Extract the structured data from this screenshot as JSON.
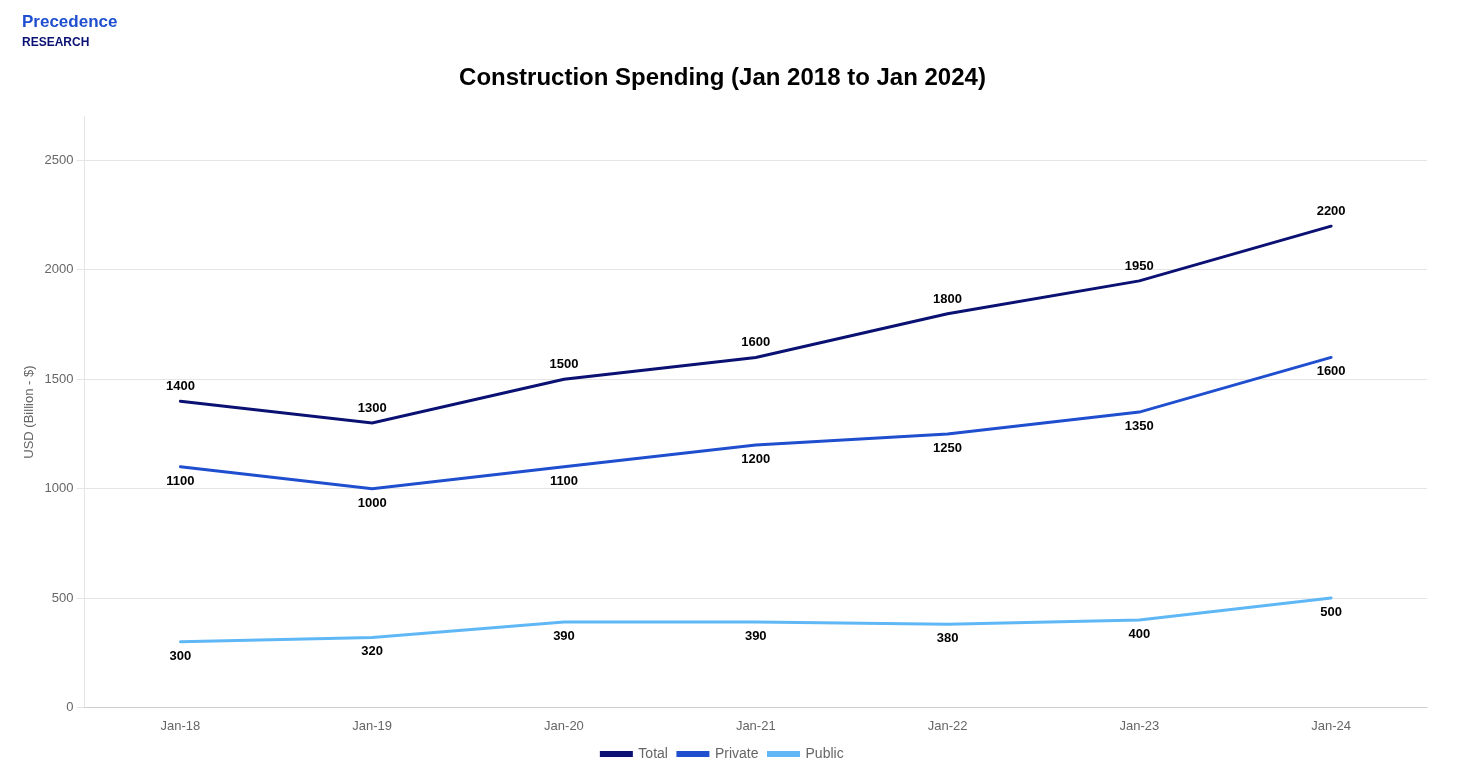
{
  "chart_data": {
    "type": "line",
    "title": "Construction Spending (Jan 2018 to Jan 2024)",
    "ylabel": "USD (Billion - $)",
    "categories": [
      "Jan-18",
      "Jan-19",
      "Jan-20",
      "Jan-21",
      "Jan-22",
      "Jan-23",
      "Jan-24"
    ],
    "series": [
      {
        "name": "Total",
        "color": "#0a1172",
        "values": [
          1400,
          1300,
          1500,
          1600,
          1800,
          1950,
          2200
        ]
      },
      {
        "name": "Private",
        "color": "#1f4fcf",
        "values": [
          1100,
          1000,
          1100,
          1200,
          1250,
          1350,
          1600
        ]
      },
      {
        "name": "Public",
        "color": "#5fb8f5",
        "values": [
          300,
          320,
          390,
          390,
          380,
          400,
          500
        ]
      }
    ],
    "ylim": [
      0,
      2700
    ],
    "yticks": [
      0,
      500,
      1000,
      1500,
      2000,
      2500
    ],
    "grid": true,
    "legend": "bottom",
    "data_labels": true,
    "annotations": [
      "Precedence",
      "RESEARCH"
    ]
  }
}
